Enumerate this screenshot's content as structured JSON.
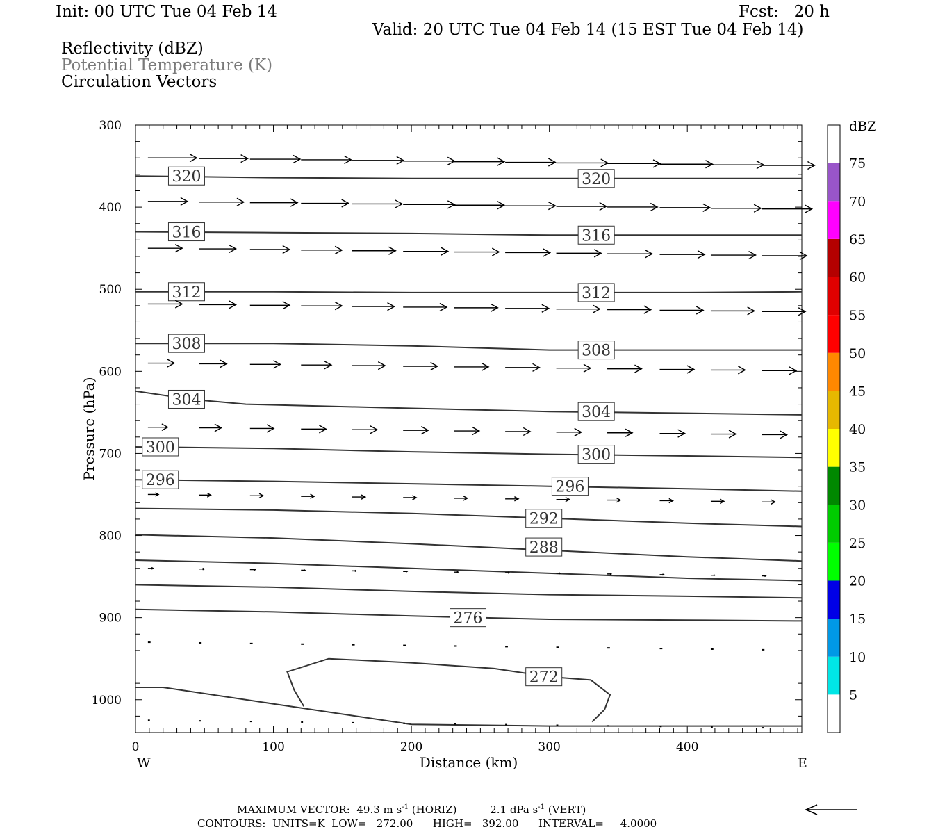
{
  "header": {
    "init": "Init: 00 UTC Tue 04 Feb 14",
    "fcst": "Fcst:   20 h",
    "valid": "Valid: 20 UTC Tue 04 Feb 14 (15 EST Tue 04 Feb 14)",
    "fields": [
      {
        "label": "Reflectivity (dBZ)",
        "color": "#000000"
      },
      {
        "label": "Potential Temperature (K)",
        "color": "#7a7a7a"
      },
      {
        "label": "Circulation Vectors",
        "color": "#000000"
      }
    ]
  },
  "chart_data": {
    "type": "cross-section",
    "xlabel": "Distance (km)",
    "ylabel": "Pressure (hPa)",
    "xlim": [
      0,
      483
    ],
    "ylim": [
      300,
      1040
    ],
    "xticks": [
      0,
      100,
      200,
      300,
      400
    ],
    "yticks": [
      300,
      400,
      500,
      600,
      700,
      800,
      900,
      1000
    ],
    "x_end_labels": {
      "left": "W",
      "right": "E"
    },
    "contours": [
      {
        "level": 320,
        "label": "320",
        "points": [
          [
            0,
            362
          ],
          [
            100,
            364
          ],
          [
            200,
            365
          ],
          [
            300,
            365
          ],
          [
            400,
            365
          ],
          [
            483,
            365
          ]
        ],
        "label_pos": [
          [
            37,
            362
          ],
          [
            334,
            365
          ]
        ]
      },
      {
        "level": 316,
        "label": "316",
        "points": [
          [
            0,
            430
          ],
          [
            100,
            431
          ],
          [
            200,
            432
          ],
          [
            300,
            434
          ],
          [
            400,
            434
          ],
          [
            483,
            434
          ]
        ],
        "label_pos": [
          [
            37,
            430
          ],
          [
            334,
            434
          ]
        ]
      },
      {
        "level": 312,
        "label": "312",
        "points": [
          [
            0,
            503
          ],
          [
            100,
            503
          ],
          [
            200,
            504
          ],
          [
            300,
            504
          ],
          [
            400,
            504
          ],
          [
            483,
            503
          ]
        ],
        "label_pos": [
          [
            37,
            503
          ],
          [
            334,
            504
          ]
        ]
      },
      {
        "level": 308,
        "label": "308",
        "points": [
          [
            0,
            566
          ],
          [
            100,
            566
          ],
          [
            200,
            569
          ],
          [
            300,
            574
          ],
          [
            400,
            574
          ],
          [
            483,
            574
          ]
        ],
        "label_pos": [
          [
            37,
            566
          ],
          [
            334,
            574
          ]
        ]
      },
      {
        "level": 304,
        "label": "304",
        "points": [
          [
            0,
            624
          ],
          [
            40,
            634
          ],
          [
            80,
            640
          ],
          [
            200,
            645
          ],
          [
            300,
            649
          ],
          [
            400,
            651
          ],
          [
            483,
            653
          ]
        ],
        "label_pos": [
          [
            37,
            634
          ],
          [
            334,
            649
          ]
        ]
      },
      {
        "level": 300,
        "label": "300",
        "points": [
          [
            0,
            692
          ],
          [
            100,
            694
          ],
          [
            200,
            698
          ],
          [
            300,
            701
          ],
          [
            400,
            703
          ],
          [
            483,
            705
          ]
        ],
        "label_pos": [
          [
            18,
            692
          ],
          [
            334,
            701
          ]
        ]
      },
      {
        "level": 296,
        "label": "296",
        "points": [
          [
            0,
            732
          ],
          [
            100,
            734
          ],
          [
            200,
            737
          ],
          [
            300,
            740
          ],
          [
            400,
            743
          ],
          [
            483,
            746
          ]
        ],
        "label_pos": [
          [
            18,
            732
          ],
          [
            315,
            740
          ]
        ]
      },
      {
        "level": 292,
        "label": "292",
        "points": [
          [
            0,
            767
          ],
          [
            100,
            769
          ],
          [
            200,
            773
          ],
          [
            300,
            779
          ],
          [
            400,
            785
          ],
          [
            483,
            789
          ]
        ],
        "label_pos": [
          [
            296,
            779
          ]
        ]
      },
      {
        "level": 288,
        "label": "288",
        "points": [
          [
            0,
            799
          ],
          [
            100,
            803
          ],
          [
            200,
            810
          ],
          [
            300,
            818
          ],
          [
            400,
            826
          ],
          [
            483,
            831
          ]
        ],
        "label_pos": [
          [
            296,
            814
          ]
        ]
      },
      {
        "level": null,
        "label": "",
        "points": [
          [
            0,
            830
          ],
          [
            100,
            834
          ],
          [
            200,
            840
          ],
          [
            300,
            846
          ],
          [
            400,
            852
          ],
          [
            483,
            855
          ]
        ],
        "label_pos": []
      },
      {
        "level": null,
        "label": "",
        "points": [
          [
            0,
            860
          ],
          [
            100,
            863
          ],
          [
            200,
            868
          ],
          [
            300,
            872
          ],
          [
            400,
            874
          ],
          [
            483,
            876
          ]
        ],
        "label_pos": []
      },
      {
        "level": 276,
        "label": "276",
        "points": [
          [
            0,
            890
          ],
          [
            100,
            893
          ],
          [
            200,
            898
          ],
          [
            300,
            902
          ],
          [
            400,
            903
          ],
          [
            483,
            904
          ]
        ],
        "label_pos": [
          [
            241,
            900
          ]
        ]
      },
      {
        "level": 272,
        "label": "272",
        "points": [
          [
            122,
            1008
          ],
          [
            115,
            988
          ],
          [
            110,
            966
          ],
          [
            140,
            950
          ],
          [
            200,
            955
          ],
          [
            260,
            962
          ],
          [
            300,
            972
          ],
          [
            330,
            976
          ],
          [
            344,
            994
          ],
          [
            340,
            1012
          ],
          [
            331,
            1027
          ]
        ],
        "label_pos": [
          [
            296,
            972
          ]
        ]
      },
      {
        "level": null,
        "label": "",
        "points": [
          [
            0,
            985
          ],
          [
            20,
            985
          ],
          [
            100,
            1005
          ],
          [
            200,
            1030
          ],
          [
            300,
            1032
          ],
          [
            400,
            1032
          ],
          [
            483,
            1032
          ]
        ],
        "label_pos": []
      }
    ],
    "vectors": {
      "x": [
        9,
        46,
        83,
        120,
        157,
        194,
        231,
        268,
        305,
        342,
        380,
        417,
        454
      ],
      "p": [
        340,
        393,
        450,
        518,
        590,
        668,
        750,
        840,
        930,
        1025
      ],
      "u": [
        [
          7.4,
          7.4,
          7.6,
          7.6,
          7.8,
          7.8,
          7.6,
          7.6,
          7.8,
          8.0,
          8.0,
          8.0,
          8.0
        ],
        [
          6.0,
          6.8,
          7.2,
          7.2,
          7.6,
          7.8,
          7.6,
          7.6,
          7.6,
          7.6,
          7.6,
          7.6,
          7.6
        ],
        [
          5.2,
          5.6,
          6.0,
          6.2,
          6.6,
          6.8,
          6.8,
          6.8,
          6.8,
          6.8,
          6.8,
          6.8,
          6.8
        ],
        [
          5.2,
          5.6,
          6.0,
          6.2,
          6.4,
          6.6,
          6.6,
          6.6,
          6.6,
          6.6,
          6.6,
          6.6,
          6.6
        ],
        [
          4.0,
          4.2,
          4.6,
          4.6,
          5.0,
          5.2,
          5.2,
          5.2,
          5.2,
          5.2,
          5.2,
          5.2,
          5.2
        ],
        [
          3.0,
          3.4,
          3.6,
          3.8,
          3.8,
          3.8,
          3.8,
          3.8,
          3.8,
          3.8,
          3.8,
          3.8,
          3.8
        ],
        [
          1.6,
          1.8,
          2.0,
          2.0,
          2.0,
          2.0,
          2.0,
          2.0,
          2.0,
          2.0,
          2.0,
          2.0,
          2.0
        ],
        [
          0.8,
          0.8,
          0.8,
          0.6,
          0.6,
          0.6,
          0.6,
          0.6,
          0.6,
          0.6,
          0.6,
          0.6,
          0.6
        ],
        [
          0.4,
          0.4,
          0.4,
          0.4,
          0.4,
          0.4,
          0.4,
          0.4,
          0.4,
          0.4,
          0.4,
          0.4,
          0.4
        ],
        [
          0.3,
          0.3,
          0.3,
          0.3,
          0.3,
          0.3,
          0.3,
          0.3,
          0.3,
          0.3,
          0.3,
          0.3,
          0.3
        ]
      ]
    },
    "colorbar": {
      "title": "dBZ",
      "levels": [
        "5",
        "10",
        "15",
        "20",
        "25",
        "30",
        "35",
        "40",
        "45",
        "50",
        "55",
        "60",
        "65",
        "70",
        "75"
      ],
      "colors": [
        "#ffffff",
        "#00e6e6",
        "#0099e6",
        "#0000e6",
        "#00ff00",
        "#00cc00",
        "#008800",
        "#ffff00",
        "#e6b800",
        "#ff8800",
        "#ff0000",
        "#e00000",
        "#b40000",
        "#ff00ff",
        "#9955c9",
        "#ffffff"
      ]
    }
  },
  "footer": {
    "max_vector_label": "MAXIMUM VECTOR:",
    "max_vector_horiz": "49.3 m s",
    "max_vector_horiz_tag": "(HORIZ)",
    "max_vector_vert": "2.1 dPa s",
    "max_vector_vert_tag": "(VERT)",
    "exponent": "-1",
    "contours_text": "CONTOURS:  UNITS=K  LOW=   272.00      HIGH=   392.00      INTERVAL=     4.0000"
  }
}
